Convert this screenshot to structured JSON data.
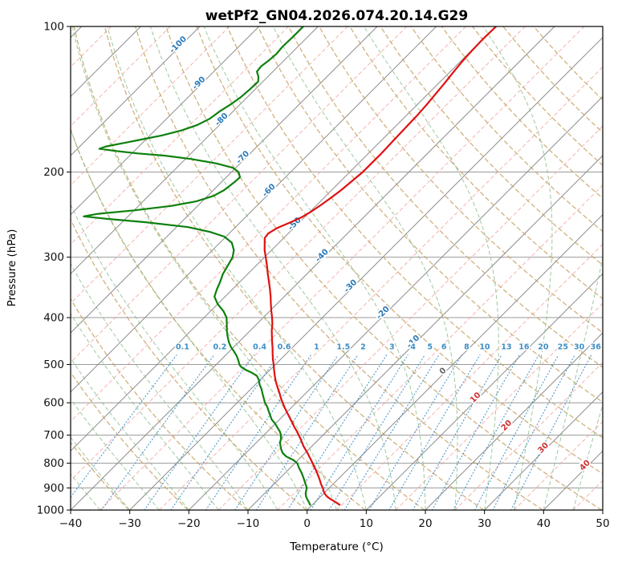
{
  "title": "wetPf2_GN04.2026.074.20.14.G29",
  "axes": {
    "xlabel": "Temperature (°C)",
    "ylabel": "Pressure (hPa)",
    "x_ticks_c": [
      -40,
      -30,
      -20,
      -10,
      0,
      10,
      20,
      30,
      40,
      50
    ],
    "pressure_ticks_hpa": [
      100,
      200,
      300,
      400,
      500,
      600,
      700,
      800,
      900,
      1000
    ]
  },
  "chart_data": {
    "type": "line",
    "diagram": "skew-t-log-p",
    "title": "wetPf2_GN04.2026.074.20.14.G29",
    "xlabel": "Temperature (°C)",
    "ylabel": "Pressure (hPa)",
    "temperature_range_c": [
      -40,
      50
    ],
    "pressure_range_hpa": [
      100,
      1000
    ],
    "skew_degrees": 45,
    "grid": true,
    "series": [
      {
        "name": "temperature",
        "color": "#e01010",
        "points_p_t": [
          [
            975,
            4.6
          ],
          [
            962,
            3.4
          ],
          [
            950,
            2.2
          ],
          [
            938,
            1.1
          ],
          [
            925,
            0.2
          ],
          [
            912,
            -0.5
          ],
          [
            900,
            -1.1
          ],
          [
            888,
            -1.8
          ],
          [
            875,
            -2.5
          ],
          [
            862,
            -3.2
          ],
          [
            850,
            -3.9
          ],
          [
            838,
            -4.6
          ],
          [
            825,
            -5.4
          ],
          [
            812,
            -6.2
          ],
          [
            800,
            -7.0
          ],
          [
            788,
            -7.8
          ],
          [
            775,
            -8.7
          ],
          [
            762,
            -9.6
          ],
          [
            750,
            -10.5
          ],
          [
            738,
            -11.4
          ],
          [
            725,
            -12.3
          ],
          [
            712,
            -13.2
          ],
          [
            700,
            -14.1
          ],
          [
            688,
            -15.0
          ],
          [
            675,
            -16.1
          ],
          [
            662,
            -17.1
          ],
          [
            650,
            -18.1
          ],
          [
            638,
            -19.1
          ],
          [
            625,
            -20.2
          ],
          [
            612,
            -21.3
          ],
          [
            600,
            -22.3
          ],
          [
            588,
            -23.3
          ],
          [
            575,
            -24.3
          ],
          [
            562,
            -25.4
          ],
          [
            550,
            -26.4
          ],
          [
            538,
            -27.4
          ],
          [
            525,
            -28.4
          ],
          [
            512,
            -29.4
          ],
          [
            500,
            -30.3
          ],
          [
            488,
            -31.3
          ],
          [
            475,
            -32.3
          ],
          [
            462,
            -33.3
          ],
          [
            450,
            -34.3
          ],
          [
            438,
            -35.3
          ],
          [
            425,
            -36.4
          ],
          [
            412,
            -37.4
          ],
          [
            400,
            -38.5
          ],
          [
            388,
            -39.7
          ],
          [
            375,
            -41.0
          ],
          [
            362,
            -42.3
          ],
          [
            350,
            -43.6
          ],
          [
            338,
            -45.0
          ],
          [
            325,
            -46.6
          ],
          [
            312,
            -48.2
          ],
          [
            300,
            -49.8
          ],
          [
            290,
            -51.2
          ],
          [
            281,
            -52.3
          ],
          [
            274,
            -53.2
          ],
          [
            268,
            -53.4
          ],
          [
            261,
            -52.8
          ],
          [
            254,
            -51.5
          ],
          [
            248,
            -50.5
          ],
          [
            241,
            -49.8
          ],
          [
            234,
            -49.3
          ],
          [
            226,
            -48.8
          ],
          [
            218,
            -48.4
          ],
          [
            209,
            -48.1
          ],
          [
            200,
            -47.8
          ],
          [
            192,
            -47.8
          ],
          [
            184,
            -47.8
          ],
          [
            176,
            -47.9
          ],
          [
            168,
            -48.0
          ],
          [
            160,
            -48.1
          ],
          [
            152,
            -48.2
          ],
          [
            145,
            -48.4
          ],
          [
            138,
            -48.7
          ],
          [
            131,
            -49.0
          ],
          [
            124,
            -49.4
          ],
          [
            118,
            -49.7
          ],
          [
            112,
            -49.9
          ],
          [
            106,
            -50.0
          ],
          [
            100,
            -49.9
          ]
        ]
      },
      {
        "name": "dewpoint",
        "color": "#0d800d",
        "points_p_t": [
          [
            975,
            -0.4
          ],
          [
            960,
            -1.2
          ],
          [
            950,
            -1.8
          ],
          [
            935,
            -2.6
          ],
          [
            920,
            -3.2
          ],
          [
            900,
            -3.8
          ],
          [
            885,
            -4.6
          ],
          [
            870,
            -5.4
          ],
          [
            850,
            -6.5
          ],
          [
            835,
            -7.4
          ],
          [
            820,
            -8.4
          ],
          [
            800,
            -9.6
          ],
          [
            788,
            -10.8
          ],
          [
            775,
            -12.6
          ],
          [
            762,
            -13.8
          ],
          [
            750,
            -14.6
          ],
          [
            738,
            -15.3
          ],
          [
            725,
            -16.0
          ],
          [
            712,
            -16.5
          ],
          [
            700,
            -17.1
          ],
          [
            688,
            -17.9
          ],
          [
            675,
            -19.0
          ],
          [
            662,
            -20.1
          ],
          [
            650,
            -21.3
          ],
          [
            638,
            -22.2
          ],
          [
            625,
            -23.2
          ],
          [
            612,
            -24.2
          ],
          [
            600,
            -25.3
          ],
          [
            588,
            -26.2
          ],
          [
            575,
            -27.2
          ],
          [
            562,
            -28.2
          ],
          [
            550,
            -29.3
          ],
          [
            538,
            -30.2
          ],
          [
            528,
            -31.2
          ],
          [
            520,
            -32.6
          ],
          [
            512,
            -34.3
          ],
          [
            505,
            -35.5
          ],
          [
            500,
            -36.1
          ],
          [
            490,
            -37.0
          ],
          [
            480,
            -38.0
          ],
          [
            470,
            -39.2
          ],
          [
            460,
            -40.5
          ],
          [
            450,
            -41.6
          ],
          [
            438,
            -42.8
          ],
          [
            425,
            -44.0
          ],
          [
            412,
            -45.1
          ],
          [
            400,
            -46.2
          ],
          [
            388,
            -47.8
          ],
          [
            375,
            -50.0
          ],
          [
            362,
            -51.8
          ],
          [
            350,
            -52.6
          ],
          [
            338,
            -53.3
          ],
          [
            325,
            -54.2
          ],
          [
            312,
            -54.8
          ],
          [
            300,
            -55.4
          ],
          [
            290,
            -56.4
          ],
          [
            280,
            -58.0
          ],
          [
            272,
            -60.3
          ],
          [
            266,
            -63.5
          ],
          [
            260,
            -68.0
          ],
          [
            254,
            -76.0
          ],
          [
            250,
            -83.0
          ],
          [
            247,
            -87.5
          ],
          [
            244,
            -85.5
          ],
          [
            240,
            -80.0
          ],
          [
            235,
            -74.5
          ],
          [
            230,
            -71.0
          ],
          [
            224,
            -69.0
          ],
          [
            218,
            -68.2
          ],
          [
            210,
            -67.8
          ],
          [
            205,
            -67.7
          ],
          [
            200,
            -68.8
          ],
          [
            196,
            -70.5
          ],
          [
            192,
            -74.0
          ],
          [
            188,
            -79.0
          ],
          [
            185,
            -84.0
          ],
          [
            183,
            -89.0
          ],
          [
            181,
            -93.0
          ],
          [
            179,
            -96.3
          ],
          [
            177,
            -95.5
          ],
          [
            174,
            -93.0
          ],
          [
            171,
            -90.5
          ],
          [
            168,
            -88.0
          ],
          [
            164,
            -85.5
          ],
          [
            160,
            -83.8
          ],
          [
            155,
            -82.7
          ],
          [
            150,
            -82.3
          ],
          [
            145,
            -81.6
          ],
          [
            140,
            -81.1
          ],
          [
            135,
            -80.9
          ],
          [
            130,
            -80.8
          ],
          [
            127,
            -81.6
          ],
          [
            124,
            -82.7
          ],
          [
            121,
            -82.9
          ],
          [
            118,
            -82.6
          ],
          [
            114,
            -82.4
          ],
          [
            110,
            -82.6
          ],
          [
            105,
            -82.5
          ],
          [
            100,
            -82.5
          ]
        ]
      }
    ],
    "isotherm_labels": [
      {
        "t_c": -100,
        "p_hpa": 110
      },
      {
        "t_c": -90,
        "p_hpa": 132
      },
      {
        "t_c": -80,
        "p_hpa": 157
      },
      {
        "t_c": -70,
        "p_hpa": 188
      },
      {
        "t_c": -60,
        "p_hpa": 220
      },
      {
        "t_c": -50,
        "p_hpa": 258
      },
      {
        "t_c": -40,
        "p_hpa": 300
      },
      {
        "t_c": -30,
        "p_hpa": 347
      },
      {
        "t_c": -20,
        "p_hpa": 394
      },
      {
        "t_c": -10,
        "p_hpa": 452
      },
      {
        "t_c": 0,
        "p_hpa": 520
      },
      {
        "t_c": 10,
        "p_hpa": 590
      },
      {
        "t_c": 20,
        "p_hpa": 674
      },
      {
        "t_c": 30,
        "p_hpa": 750
      },
      {
        "t_c": 40,
        "p_hpa": 815
      }
    ],
    "mixing_ratio_labels_g_kg": [
      0.1,
      0.2,
      0.4,
      0.6,
      1,
      1.5,
      2,
      3,
      4,
      5,
      6,
      8,
      10,
      13,
      16,
      20,
      25,
      30,
      36
    ],
    "mixing_label_p_hpa": 460,
    "background": {
      "isotherms_c": {
        "min": -120,
        "max": 50,
        "step": 10
      },
      "minor_isotherms_c": {
        "min": -115,
        "max": 45,
        "step": 10
      },
      "dry_adiabats_theta_k": {
        "min": 243,
        "max": 443,
        "step": 10
      },
      "moist_adiabats_t0_c": {
        "min": -40,
        "max": 45,
        "step": 5
      },
      "mixing_lines_top_hpa": 478
    },
    "colors": {
      "isotherm": "#8c8c8c",
      "minor_isotherm": "#f3a099",
      "dry_adiabat": "#c8a469",
      "moist_adiabat": "#86bb86",
      "mixing_line": "#3e8ec4",
      "grid": "#999999",
      "label_negative": "#2b7bba",
      "label_zero": "#666666",
      "label_positive": "#cc3333",
      "temperature": "#e01010",
      "dewpoint": "#0d800d"
    }
  }
}
